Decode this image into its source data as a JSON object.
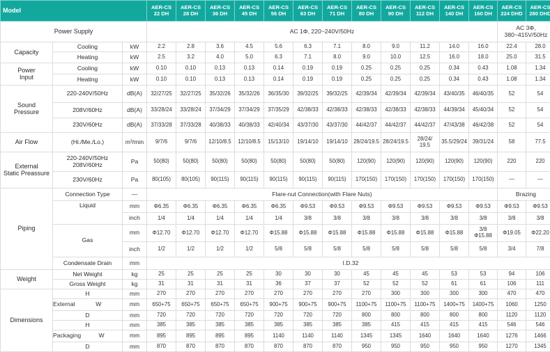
{
  "header": {
    "model": "Model",
    "models": [
      [
        "AER-CS",
        "22 DH"
      ],
      [
        "AER-CS",
        "28 DH"
      ],
      [
        "AER-CS",
        "36 DH"
      ],
      [
        "AER-CS",
        "45 DH"
      ],
      [
        "AER-CS",
        "56 DH"
      ],
      [
        "AER-CS",
        "63 DH"
      ],
      [
        "AER-CS",
        "71 DH"
      ],
      [
        "AER-CS",
        "80 DH"
      ],
      [
        "AER-CS",
        "90 DH"
      ],
      [
        "AER-CS",
        "112 DH"
      ],
      [
        "AER-CS",
        "140 DH"
      ],
      [
        "AER-CS",
        "160 DH"
      ],
      [
        "AER-CS",
        "224 DHD"
      ],
      [
        "AER-CS",
        "280 DHD"
      ]
    ]
  },
  "power_supply": {
    "label": "Power Supply",
    "single": "AC 1Φ, 220~240V/50Hz",
    "three_a": "AC 3Φ,",
    "three_b": "380~415V/50Hz"
  },
  "capacity": {
    "label": "Capacity",
    "cooling": {
      "label": "Cooling",
      "unit": "kW",
      "values": [
        "2.2",
        "2.8",
        "3.6",
        "4.5",
        "5.6",
        "6.3",
        "7.1",
        "8.0",
        "9.0",
        "11.2",
        "14.0",
        "16.0",
        "22.4",
        "28.0"
      ]
    },
    "heating": {
      "label": "Heating",
      "unit": "kW",
      "values": [
        "2.5",
        "3.2",
        "4.0",
        "5.0",
        "6.3",
        "7.1",
        "8.0",
        "9.0",
        "10.0",
        "12.5",
        "16.0",
        "18.0",
        "25.0",
        "31.5"
      ]
    }
  },
  "power_input": {
    "label_a": "Power",
    "label_b": "Input",
    "cooling": {
      "label": "Cooling",
      "unit": "kW",
      "values": [
        "0.10",
        "0.10",
        "0.13",
        "0.13",
        "0.14",
        "0.19",
        "0.19",
        "0.25",
        "0.25",
        "0.25",
        "0.34",
        "0.43",
        "1.08",
        "1.34"
      ]
    },
    "heating": {
      "label": "Heating",
      "unit": "kW",
      "values": [
        "0.10",
        "0.10",
        "0.13",
        "0.13",
        "0.14",
        "0.19",
        "0.19",
        "0.25",
        "0.25",
        "0.25",
        "0.34",
        "0.43",
        "1.08",
        "1.34"
      ]
    }
  },
  "sound": {
    "label_a": "Sound",
    "label_b": "Pressure",
    "rows": [
      {
        "label": "220-240V/50Hz",
        "unit": "dB(A)",
        "values": [
          "32/27/25",
          "32/27/25",
          "35/32/26",
          "35/32/26",
          "36/35/30",
          "39/32/25",
          "39/32/25",
          "42/39/34",
          "42/39/34",
          "42/39/34",
          "43/40/35",
          "46/40/35",
          "52",
          "54"
        ]
      },
      {
        "label": "208V/60Hz",
        "unit": "dB(A)",
        "values": [
          "33/28/24",
          "33/28/24",
          "37/34/29",
          "37/34/29",
          "37/35/29",
          "42/38/33",
          "42/38/33",
          "42/38/33",
          "42/38/33",
          "42/38/33",
          "44/39/34",
          "45/40/34",
          "52",
          "54"
        ]
      },
      {
        "label": "230V/60Hz",
        "unit": "dB(A)",
        "values": [
          "37/33/28",
          "37/33/28",
          "40/38/33",
          "40/38/33",
          "42/40/34",
          "43/37/30",
          "43/37/30",
          "44/42/37",
          "44/42/37",
          "44/42/37",
          "47/43/38",
          "46/42/38",
          "52",
          "54"
        ]
      }
    ]
  },
  "airflow": {
    "label": "Air Flow",
    "sub": "(Hi./Me./Lo.)",
    "unit": "m³/min",
    "values": [
      "9/7/6",
      "9/7/6",
      "12/10/8.5",
      "12/10/8.5",
      "15/13/10",
      "19/14/10",
      "19/14/10",
      "28/24/19.5",
      "28/24/19.5",
      "28/24/19.5",
      "35.5/29/24",
      "39/31/24",
      "58",
      "77.5"
    ],
    "split_a": "28/24/",
    "split_b": "19.5"
  },
  "esp": {
    "label_a": "External",
    "label_b": "Static Preassure",
    "row1": {
      "label_a": "220-240V/50Hz",
      "label_b": "208V/60Hz",
      "unit": "Pa",
      "values": [
        "50(80)",
        "50(80)",
        "50(80)",
        "50(80)",
        "50(80)",
        "50(80)",
        "50(80)",
        "120(90)",
        "120(90)",
        "120(90)",
        "120(90)",
        "120(90)",
        "220",
        "220"
      ]
    },
    "row2": {
      "label": "230V/60Hz",
      "unit": "Pa",
      "values": [
        "80(105)",
        "80(105)",
        "90(115)",
        "90(115)",
        "90(115)",
        "90(115)",
        "90(115)",
        "170(150)",
        "170(150)",
        "170(150)",
        "170(150)",
        "170(150)",
        "—",
        "—"
      ]
    }
  },
  "piping": {
    "label": "Piping",
    "connection": {
      "label": "Connection Type",
      "unit": "—",
      "flare": "Flare-nut Connection(with Flare Nuts)",
      "brazing": "Brazing"
    },
    "liquid": {
      "label": "Liquid",
      "mm": {
        "unit": "mm",
        "values": [
          "Φ6.35",
          "Φ6.35",
          "Φ6.35",
          "Φ6.35",
          "Φ6.35",
          "Φ9.53",
          "Φ9.53",
          "Φ9.53",
          "Φ9.53",
          "Φ9.53",
          "Φ9.53",
          "Φ9.53",
          "Φ9.53",
          "Φ9.53"
        ]
      },
      "inch": {
        "unit": "inch",
        "values": [
          "1/4",
          "1/4",
          "1/4",
          "1/4",
          "1/4",
          "3/8",
          "3/8",
          "3/8",
          "3/8",
          "3/8",
          "3/8",
          "3/8",
          "3/8",
          "3/8"
        ]
      }
    },
    "gas": {
      "label": "Gas",
      "mm": {
        "unit": "mm",
        "values": [
          "Φ12.70",
          "Φ12.70",
          "Φ12.70",
          "Φ12.70",
          "Φ15.88",
          "Φ15.88",
          "Φ15.88",
          "Φ15.88",
          "Φ15.88",
          "Φ15.88",
          "Φ15.88",
          "Φ15.88",
          "Φ19.05",
          "Φ22.20"
        ],
        "col12_a": "3/8",
        "col12_b": "Φ15.88"
      },
      "inch": {
        "unit": "inch",
        "values": [
          "1/2",
          "1/2",
          "1/2",
          "1/2",
          "5/8",
          "5/8",
          "5/8",
          "5/8",
          "5/8",
          "5/8",
          "5/8",
          "5/8",
          "3/4",
          "7/8"
        ]
      }
    },
    "condensate": {
      "label": "Condensate Drain",
      "unit": "mm",
      "value": "I.D.32"
    }
  },
  "weight": {
    "label": "Weight",
    "net": {
      "label": "Net Weight",
      "unit": "kg",
      "values": [
        "25",
        "25",
        "25",
        "25",
        "30",
        "30",
        "30",
        "45",
        "45",
        "45",
        "53",
        "53",
        "94",
        "106"
      ]
    },
    "gross": {
      "label": "Gross Weight",
      "unit": "kg",
      "values": [
        "31",
        "31",
        "31",
        "31",
        "36",
        "37",
        "37",
        "52",
        "52",
        "52",
        "61",
        "61",
        "106",
        "111"
      ]
    }
  },
  "dimensions": {
    "label": "Dimensions",
    "external": {
      "label": "External",
      "H": {
        "dim": "H",
        "unit": "mm",
        "values": [
          "270",
          "270",
          "270",
          "270",
          "270",
          "270",
          "270",
          "270",
          "300",
          "300",
          "300",
          "300",
          "470",
          "470"
        ]
      },
      "W": {
        "dim": "W",
        "unit": "mm",
        "values": [
          "650+75",
          "650+75",
          "650+75",
          "650+75",
          "900+75",
          "900+75",
          "900+75",
          "1100+75",
          "1100+75",
          "1100+75",
          "1400+75",
          "1400+75",
          "1060",
          "1250"
        ]
      },
      "D": {
        "dim": "D",
        "unit": "mm",
        "values": [
          "720",
          "720",
          "720",
          "720",
          "720",
          "720",
          "720",
          "800",
          "800",
          "800",
          "800",
          "800",
          "1120",
          "1120"
        ]
      }
    },
    "packaging": {
      "label": "Packaging",
      "H": {
        "dim": "H",
        "unit": "mm",
        "values": [
          "385",
          "385",
          "385",
          "385",
          "385",
          "385",
          "385",
          "385",
          "415",
          "415",
          "415",
          "415",
          "546",
          "546"
        ]
      },
      "W": {
        "dim": "W",
        "unit": "mm",
        "values": [
          "895",
          "895",
          "895",
          "895",
          "1140",
          "1140",
          "1140",
          "1345",
          "1345",
          "1640",
          "1640",
          "1640",
          "1276",
          "1466"
        ]
      },
      "D": {
        "dim": "D",
        "unit": "mm",
        "values": [
          "870",
          "870",
          "870",
          "870",
          "870",
          "870",
          "870",
          "950",
          "950",
          "950",
          "950",
          "950",
          "1270",
          "1345"
        ]
      }
    }
  }
}
